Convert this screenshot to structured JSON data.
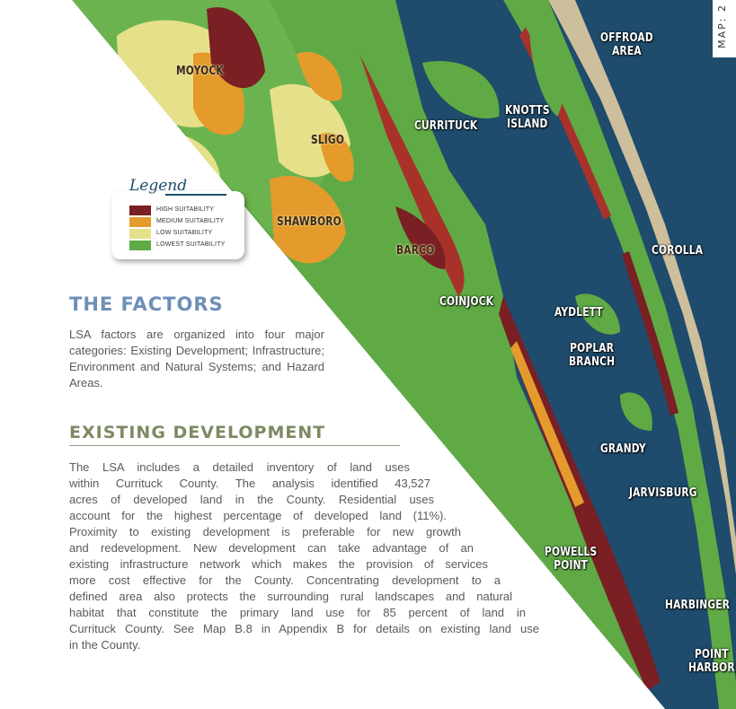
{
  "map_tag": "MAP: 2",
  "place_labels": {
    "moyock": "MOYOCK",
    "sligo": "SLIGO",
    "shawboro": "SHAWBORO",
    "currituck": "CURRITUCK",
    "knotts_island": "KNOTTS\nISLAND",
    "offroad_area": "OFFROAD\nAREA",
    "barco": "BARCO",
    "coinjock": "COINJOCK",
    "corolla": "COROLLA",
    "aydlett": "AYDLETT",
    "poplar_branch": "POPLAR\nBRANCH",
    "grandy": "GRANDY",
    "jarvisburg": "JARVISBURG",
    "powells_point": "POWELLS\nPOINT",
    "harbinger": "HARBINGER",
    "point_harbor": "POINT\nHARBOR"
  },
  "legend": {
    "title": "Legend",
    "items": [
      {
        "label": "HIGH SUITABILITY",
        "color": "#7a1f24"
      },
      {
        "label": "MEDIUM SUITABILITY",
        "color": "#e59a2c"
      },
      {
        "label": "LOW SUITABILITY",
        "color": "#e6e08a"
      },
      {
        "label": "LOWEST SUITABILITY",
        "color": "#5faa45"
      }
    ]
  },
  "colors": {
    "water": "#1f4b6c",
    "shore": "#cfc2a2",
    "heading_factors": "#6d8fb8",
    "heading_existing": "#7d8a63",
    "body_text": "#5a5a5a"
  },
  "sections": {
    "factors": {
      "heading": "THE FACTORS",
      "body": "LSA factors are organized into four major categories: Existing Development; Infrastructure; Environment and Natural Systems; and Hazard Areas."
    },
    "existing": {
      "heading": "EXISTING DEVELOPMENT",
      "lines": [
        "The LSA includes a detailed inventory of land uses",
        "within Currituck County. The analysis identified 43,527",
        "acres of developed land in the County. Residential uses",
        "account for the highest percentage of developed land (11%).",
        "Proximity to existing development is preferable for new growth",
        "and redevelopment. New development can take advantage of an",
        "existing infrastructure network which makes the provision of services",
        "more cost effective for the County. Concentrating development to a",
        "defined area also protects the surrounding rural landscapes and natural",
        "habitat that constitute the primary land use for 85 percent of land in",
        "Currituck County. See Map B.8 in Appendix B for details on existing land use",
        "in the County."
      ]
    }
  }
}
